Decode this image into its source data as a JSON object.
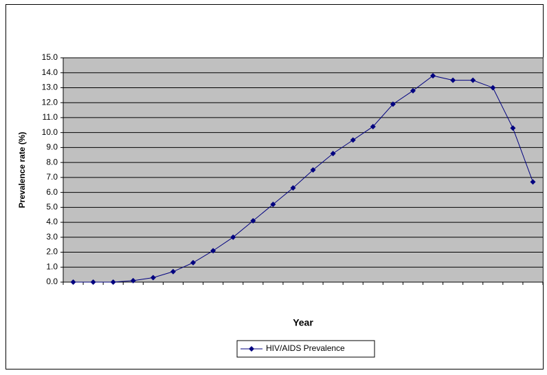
{
  "chart_data": {
    "type": "line",
    "x_label": "Year",
    "y_label": "Prevalence rate (%)",
    "categories": [
      null,
      null,
      null,
      null,
      null,
      null,
      null,
      null,
      null,
      null,
      null,
      null,
      null,
      null,
      null,
      null,
      null,
      null,
      null,
      null,
      null,
      null,
      null,
      null
    ],
    "series": [
      {
        "name": "HIV/AIDS Prevalence",
        "color": "#000080",
        "values": [
          0,
          0,
          0,
          0.1,
          0.3,
          0.7,
          1.3,
          2.1,
          3.0,
          4.1,
          5.2,
          6.3,
          7.5,
          8.6,
          9.5,
          10.4,
          11.9,
          12.8,
          13.8,
          13.5,
          13.5,
          13.0,
          10.3,
          6.7
        ]
      }
    ],
    "ylim": [
      0,
      15
    ],
    "yticks": [
      {
        "value": 0,
        "label": "0.0"
      },
      {
        "value": 1,
        "label": "1.0"
      },
      {
        "value": 2,
        "label": "2.0"
      },
      {
        "value": 3,
        "label": "3.0"
      },
      {
        "value": 4,
        "label": "4.0"
      },
      {
        "value": 5,
        "label": "5.0"
      },
      {
        "value": 6,
        "label": "6.0"
      },
      {
        "value": 7,
        "label": "7.0"
      },
      {
        "value": 8,
        "label": "8.0"
      },
      {
        "value": 9,
        "label": "9.0"
      },
      {
        "value": 10,
        "label": "10.0"
      },
      {
        "value": 11,
        "label": "11.0"
      },
      {
        "value": 12,
        "label": "12.0"
      },
      {
        "value": 13,
        "label": "13.0"
      },
      {
        "value": 14,
        "label": "14.0"
      },
      {
        "value": 15,
        "label": "15.0"
      }
    ],
    "grid": true,
    "plot_background": "#c0c0c0",
    "legend": "bottom"
  }
}
